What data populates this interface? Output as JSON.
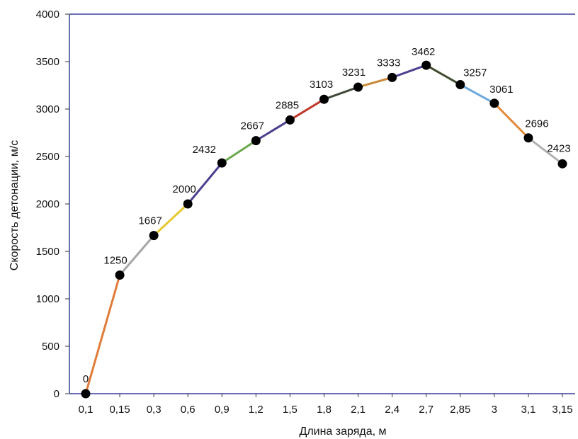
{
  "chart_data": {
    "type": "line",
    "title": "",
    "xlabel": "Длина заряда, м",
    "ylabel": "Скорость детонации, м/с",
    "categories": [
      "0,1",
      "0,15",
      "0,3",
      "0,6",
      "0,9",
      "1,2",
      "1,5",
      "1,8",
      "2,1",
      "2,4",
      "2,7",
      "2,85",
      "3",
      "3,1",
      "3,15"
    ],
    "values": [
      0,
      1250,
      1667,
      2000,
      2432,
      2667,
      2885,
      3103,
      3231,
      3333,
      3462,
      3257,
      3061,
      2696,
      2423
    ],
    "data_labels": [
      "0",
      "1250",
      "1667",
      "2000",
      "2432",
      "2667",
      "2885",
      "3103",
      "3231",
      "3333",
      "3462",
      "3257",
      "3061",
      "2696",
      "2423"
    ],
    "ylim": [
      0,
      4000
    ],
    "yticks": [
      0,
      500,
      1000,
      1500,
      2000,
      2500,
      3000,
      3500,
      4000
    ],
    "ytick_labels": [
      "0",
      "500",
      "1000",
      "1500",
      "2000",
      "2500",
      "3000",
      "3500",
      "4000"
    ],
    "grid": false,
    "legend": "none",
    "colors": {
      "frame": "#6a6fb3",
      "marker": "#000000",
      "segments": [
        "#e07b39",
        "#a5a5a5",
        "#e6c832",
        "#4b3f8f",
        "#6aa84f",
        "#4b3f8f",
        "#c0392b",
        "#3f4a3a",
        "#c98a3a",
        "#4b3f8f",
        "#3d4a2c",
        "#6fa8dc",
        "#e08a3a",
        "#b0b0b0"
      ]
    }
  }
}
